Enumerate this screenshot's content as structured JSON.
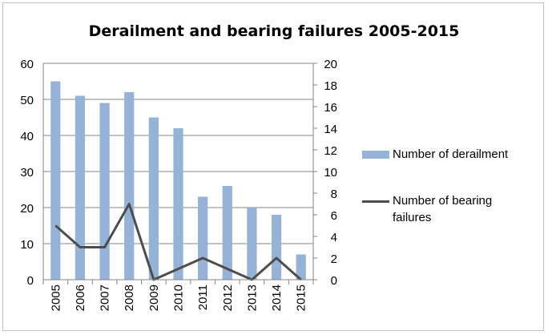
{
  "chart_data": {
    "type": "bar",
    "title": "Derailment and bearing failures 2005-2015",
    "categories": [
      "2005",
      "2006",
      "2007",
      "2008",
      "2009",
      "2010",
      "2011",
      "2012",
      "2013",
      "2014",
      "2015"
    ],
    "series": [
      {
        "name": "Number of derailment",
        "type": "bar",
        "axis": "left",
        "values": [
          55,
          51,
          49,
          52,
          45,
          42,
          23,
          26,
          20,
          18,
          7
        ],
        "color": "#95b3d7"
      },
      {
        "name": "Number of bearing failures",
        "type": "line",
        "axis": "right",
        "values": [
          5,
          3,
          3,
          7,
          0,
          1,
          2,
          1,
          0,
          2,
          0
        ],
        "color": "#4d4d4d"
      }
    ],
    "ylim_left": [
      0,
      60
    ],
    "yticks_left": [
      "0",
      "10",
      "20",
      "30",
      "40",
      "50",
      "60"
    ],
    "ylim_right": [
      0,
      20
    ],
    "yticks_right": [
      "0",
      "2",
      "4",
      "6",
      "8",
      "10",
      "12",
      "14",
      "16",
      "18",
      "20"
    ],
    "grid": true,
    "legend_position": "right"
  }
}
